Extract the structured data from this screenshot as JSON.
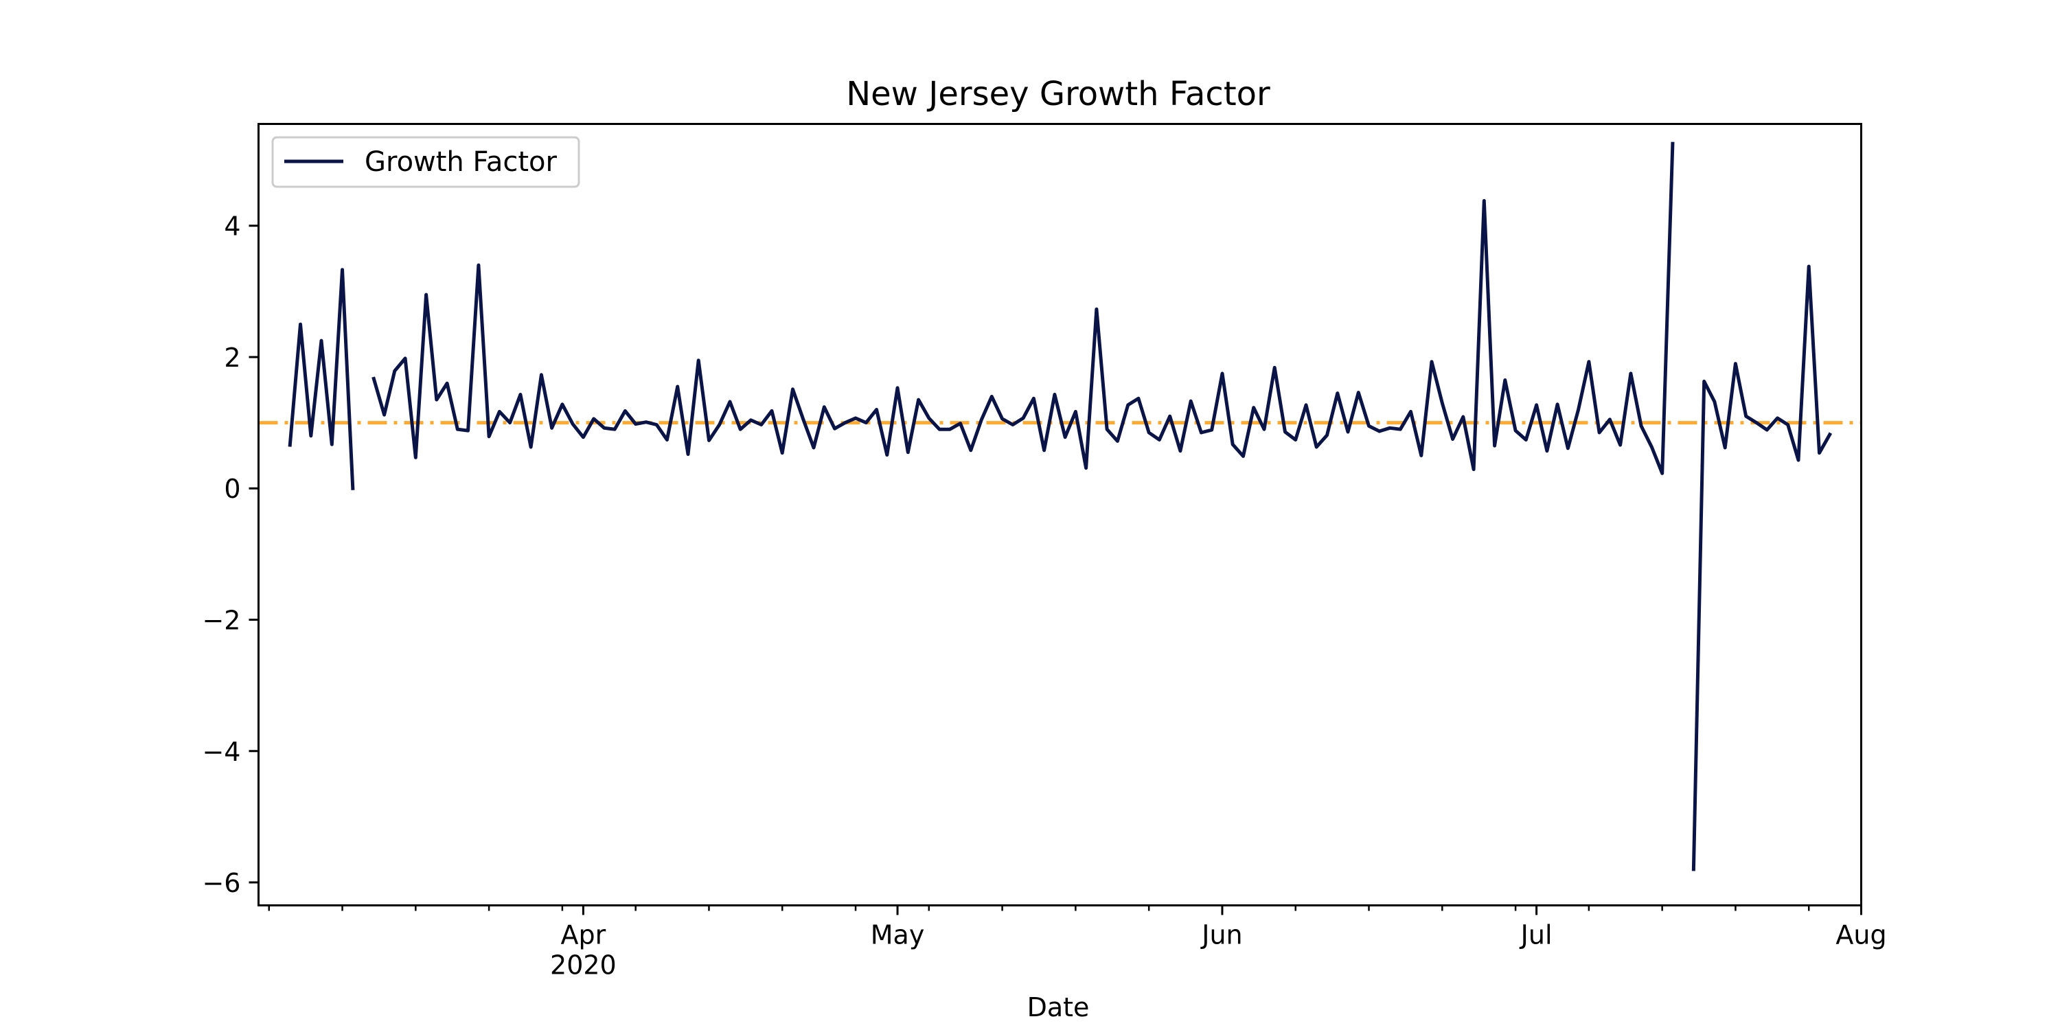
{
  "chart_data": {
    "type": "line",
    "title": "New Jersey Growth Factor",
    "xlabel": "Date",
    "ylabel": "",
    "x_start": "2020-03-04",
    "x_end": "2020-08-01",
    "xlim": [
      "2020-03-01",
      "2020-08-01"
    ],
    "ylim": [
      -6.35,
      5.55
    ],
    "y_ticks": [
      -6,
      -4,
      -2,
      0,
      2,
      4
    ],
    "x_ticks": [
      {
        "date": "2020-04-01",
        "label": "Apr",
        "sublabel": "2020"
      },
      {
        "date": "2020-05-01",
        "label": "May",
        "sublabel": ""
      },
      {
        "date": "2020-06-01",
        "label": "Jun",
        "sublabel": ""
      },
      {
        "date": "2020-07-01",
        "label": "Jul",
        "sublabel": ""
      },
      {
        "date": "2020-08-01",
        "label": "Aug",
        "sublabel": ""
      }
    ],
    "grid": false,
    "legend": {
      "position": "top-left",
      "entries": [
        "Growth Factor"
      ]
    },
    "series": [
      {
        "name": "Growth Factor",
        "color": "#0b1446",
        "values": [
          0.66,
          2.5,
          0.8,
          2.25,
          0.67,
          3.33,
          0.0,
          null,
          1.67,
          1.12,
          1.79,
          1.98,
          0.47,
          2.95,
          1.35,
          1.6,
          0.9,
          0.88,
          3.4,
          0.79,
          1.17,
          1.0,
          1.43,
          0.63,
          1.73,
          0.92,
          1.28,
          0.98,
          0.78,
          1.06,
          0.92,
          0.9,
          1.18,
          0.98,
          1.01,
          0.97,
          0.74,
          1.55,
          0.52,
          1.95,
          0.73,
          0.97,
          1.32,
          0.9,
          1.04,
          0.97,
          1.18,
          0.54,
          1.51,
          1.05,
          0.62,
          1.24,
          0.91,
          1.0,
          1.07,
          1.0,
          1.2,
          0.51,
          1.53,
          0.55,
          1.35,
          1.07,
          0.9,
          0.9,
          0.99,
          0.58,
          1.04,
          1.4,
          1.06,
          0.97,
          1.07,
          1.37,
          0.58,
          1.43,
          0.78,
          1.17,
          0.31,
          2.73,
          0.9,
          0.72,
          1.27,
          1.37,
          0.85,
          0.74,
          1.1,
          0.57,
          1.33,
          0.85,
          0.89,
          1.75,
          0.67,
          0.49,
          1.23,
          0.9,
          1.84,
          0.86,
          0.74,
          1.27,
          0.63,
          0.81,
          1.45,
          0.86,
          1.46,
          0.95,
          0.87,
          0.92,
          0.9,
          1.17,
          0.5,
          1.93,
          1.3,
          0.75,
          1.09,
          0.29,
          4.38,
          0.65,
          1.65,
          0.88,
          0.74,
          1.27,
          0.57,
          1.28,
          0.61,
          1.2,
          1.93,
          0.85,
          1.05,
          0.66,
          1.75,
          0.95,
          0.63,
          0.23,
          5.25,
          null,
          -5.8,
          1.63,
          1.32,
          0.62,
          1.9,
          1.1,
          1.0,
          0.89,
          1.07,
          0.97,
          0.43,
          3.38,
          0.54,
          0.82
        ]
      },
      {
        "name": "",
        "color": "#ffaa33",
        "style": "dash-dot",
        "reference_y": 1.0
      }
    ]
  }
}
